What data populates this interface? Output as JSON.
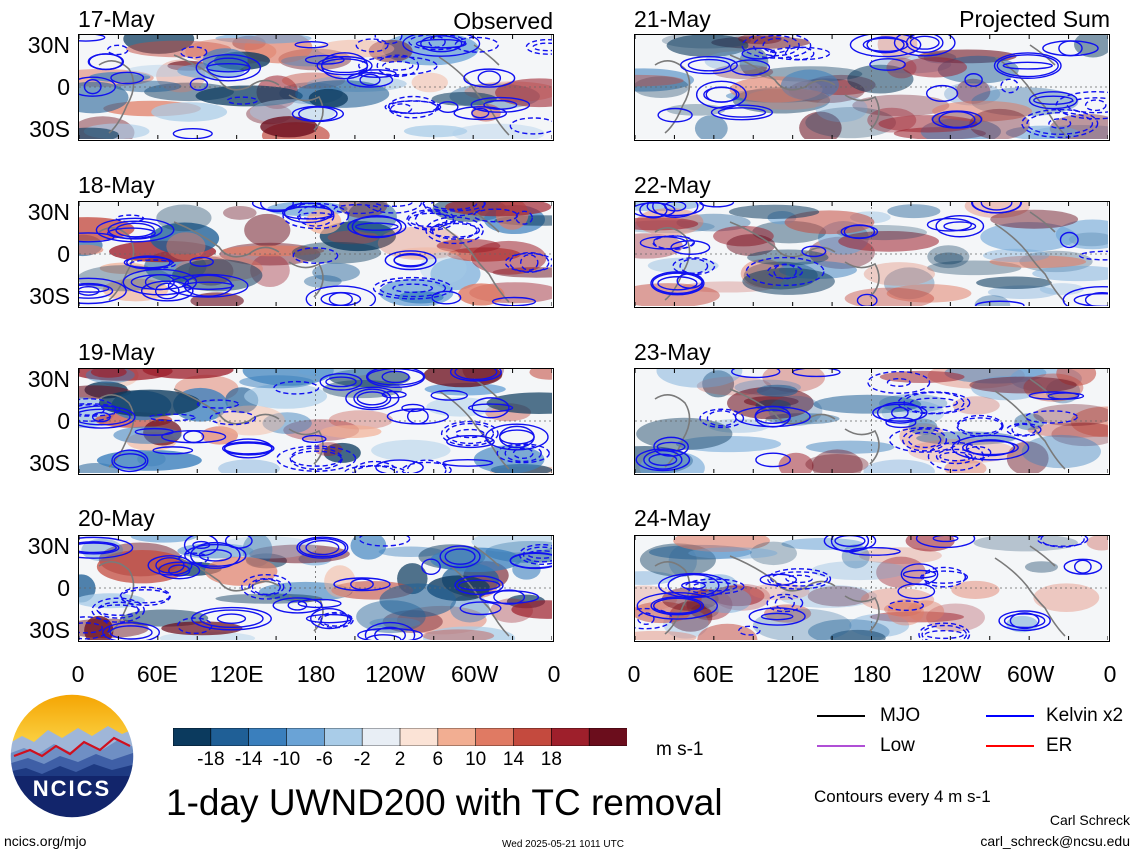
{
  "chart_data": {
    "type": "heatmap",
    "title": "1-day UWND200 with TC removal",
    "units": "m s-1",
    "contour_note": "Contours every 4 m s-1",
    "observed_label": "Observed",
    "projected_label": "Projected Sum",
    "observed_dates": [
      "17-May",
      "18-May",
      "19-May",
      "20-May"
    ],
    "projected_dates": [
      "21-May",
      "22-May",
      "23-May",
      "24-May"
    ],
    "lat_ticks": [
      "30N",
      "0",
      "30S"
    ],
    "lon_ticks": [
      "0",
      "60E",
      "120E",
      "180",
      "120W",
      "60W",
      "0"
    ],
    "colorbar": {
      "ticks": [
        "-18",
        "-14",
        "-10",
        "-6",
        "-2",
        "2",
        "6",
        "10",
        "14",
        "18"
      ],
      "colors": [
        "#0b3a5e",
        "#1f5f96",
        "#3a7fbd",
        "#6aa3d6",
        "#a9cce8",
        "#e8eef5",
        "#fbe3d6",
        "#f2ae92",
        "#e07a63",
        "#c44a3e",
        "#9e1f2b",
        "#6b0d1c"
      ]
    },
    "legend": [
      {
        "name": "MJO",
        "color": "#000000"
      },
      {
        "name": "Kelvin x2",
        "color": "#0000ff"
      },
      {
        "name": "Low",
        "color": "#b04fd6"
      },
      {
        "name": "ER",
        "color": "#ff0000"
      }
    ]
  },
  "branding": {
    "logo_text": "NCICS",
    "site": "ncics.org/mjo",
    "timestamp": "Wed 2025-05-21 1011 UTC",
    "author": "Carl Schreck",
    "email": "carl_schreck@ncsu.edu"
  }
}
